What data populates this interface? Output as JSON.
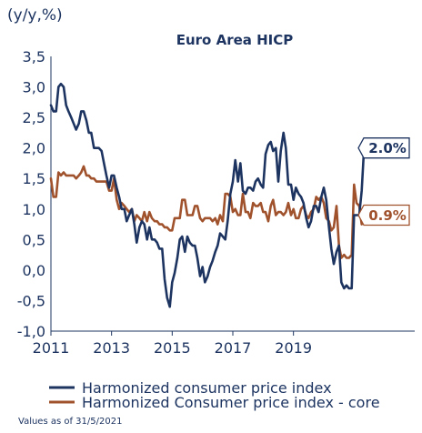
{
  "chart_data": {
    "type": "line",
    "title": "Euro Area HICP",
    "ylabel": "(y/y,%)",
    "xlabel": "",
    "ylim": [
      -1.0,
      3.5
    ],
    "xlim": [
      2011.0,
      2023.0
    ],
    "yticks": [
      "3,5",
      "3,0",
      "2,5",
      "2,0",
      "1,5",
      "1,0",
      "0,5",
      "0,0",
      "-0,5",
      "-1,0"
    ],
    "xticks": [
      "2011",
      "2013",
      "2015",
      "2017",
      "2019"
    ],
    "grid": false,
    "legend": "bottom",
    "colors": {
      "headline": "#1d3461",
      "core": "#a0522d"
    },
    "series": [
      {
        "name": "Harmonized consumer price index",
        "color": "#1d3461",
        "x": [
          2011.0,
          2011.08,
          2011.17,
          2011.25,
          2011.33,
          2011.42,
          2011.5,
          2011.58,
          2011.67,
          2011.75,
          2011.83,
          2011.92,
          2012.0,
          2012.08,
          2012.17,
          2012.25,
          2012.33,
          2012.42,
          2012.5,
          2012.58,
          2012.67,
          2012.75,
          2012.83,
          2012.92,
          2013.0,
          2013.08,
          2013.17,
          2013.25,
          2013.33,
          2013.42,
          2013.5,
          2013.58,
          2013.67,
          2013.75,
          2013.83,
          2013.92,
          2014.0,
          2014.08,
          2014.17,
          2014.25,
          2014.33,
          2014.42,
          2014.5,
          2014.58,
          2014.67,
          2014.75,
          2014.83,
          2014.92,
          2015.0,
          2015.08,
          2015.17,
          2015.25,
          2015.33,
          2015.42,
          2015.5,
          2015.58,
          2015.67,
          2015.75,
          2015.83,
          2015.92,
          2016.0,
          2016.08,
          2016.17,
          2016.25,
          2016.33,
          2016.42,
          2016.5,
          2016.58,
          2016.67,
          2016.75,
          2016.83,
          2016.92,
          2017.0,
          2017.08,
          2017.17,
          2017.25,
          2017.33,
          2017.42,
          2017.5,
          2017.58,
          2017.67,
          2017.75,
          2017.83,
          2017.92,
          2018.0,
          2018.08,
          2018.17,
          2018.25,
          2018.33,
          2018.42,
          2018.5,
          2018.58,
          2018.67,
          2018.75,
          2018.83,
          2018.92,
          2019.0,
          2019.08,
          2019.17,
          2019.25,
          2019.33,
          2019.42,
          2019.5,
          2019.58,
          2019.67,
          2019.75,
          2019.83,
          2019.92,
          2020.0,
          2020.08,
          2020.17,
          2020.25,
          2020.33,
          2020.42,
          2020.5,
          2020.58,
          2020.67,
          2020.75,
          2020.83,
          2020.92,
          2021.0,
          2021.08,
          2021.17,
          2021.25,
          2021.33
        ],
        "values": [
          2.7,
          2.6,
          2.6,
          3.0,
          3.05,
          3.0,
          2.7,
          2.6,
          2.5,
          2.4,
          2.3,
          2.4,
          2.6,
          2.6,
          2.45,
          2.25,
          2.25,
          2.0,
          2.0,
          2.0,
          1.95,
          1.75,
          1.55,
          1.35,
          1.55,
          1.55,
          1.35,
          1.2,
          1.0,
          1.0,
          0.8,
          0.9,
          1.0,
          0.75,
          0.45,
          0.7,
          0.8,
          0.75,
          0.5,
          0.7,
          0.5,
          0.5,
          0.45,
          0.35,
          0.35,
          -0.15,
          -0.45,
          -0.6,
          -0.2,
          -0.05,
          0.2,
          0.5,
          0.55,
          0.3,
          0.55,
          0.45,
          0.4,
          0.4,
          0.2,
          -0.1,
          0.05,
          -0.2,
          -0.1,
          0.05,
          0.15,
          0.3,
          0.4,
          0.6,
          0.55,
          0.5,
          0.8,
          1.25,
          1.45,
          1.8,
          1.45,
          1.75,
          1.3,
          1.25,
          1.35,
          1.35,
          1.3,
          1.45,
          1.5,
          1.4,
          1.35,
          1.9,
          2.05,
          2.1,
          1.95,
          2.0,
          1.45,
          1.95,
          2.25,
          2.0,
          1.4,
          1.4,
          1.15,
          1.35,
          1.25,
          1.2,
          1.1,
          0.85,
          0.7,
          0.8,
          1.05,
          1.05,
          0.95,
          1.2,
          1.35,
          1.15,
          0.7,
          0.35,
          0.1,
          0.3,
          0.4,
          -0.2,
          -0.3,
          -0.25,
          -0.3,
          -0.3,
          0.9,
          0.9,
          0.9,
          1.3,
          2.0
        ]
      },
      {
        "name": "Harmonized Consumer price index - core",
        "color": "#a0522d",
        "x": [
          2011.0,
          2011.08,
          2011.17,
          2011.25,
          2011.33,
          2011.42,
          2011.5,
          2011.58,
          2011.67,
          2011.75,
          2011.83,
          2011.92,
          2012.0,
          2012.08,
          2012.17,
          2012.25,
          2012.33,
          2012.42,
          2012.5,
          2012.58,
          2012.67,
          2012.75,
          2012.83,
          2012.92,
          2013.0,
          2013.08,
          2013.17,
          2013.25,
          2013.33,
          2013.42,
          2013.5,
          2013.58,
          2013.67,
          2013.75,
          2013.83,
          2013.92,
          2014.0,
          2014.08,
          2014.17,
          2014.25,
          2014.33,
          2014.42,
          2014.5,
          2014.58,
          2014.67,
          2014.75,
          2014.83,
          2014.92,
          2015.0,
          2015.08,
          2015.17,
          2015.25,
          2015.33,
          2015.42,
          2015.5,
          2015.58,
          2015.67,
          2015.75,
          2015.83,
          2015.92,
          2016.0,
          2016.08,
          2016.17,
          2016.25,
          2016.33,
          2016.42,
          2016.5,
          2016.58,
          2016.67,
          2016.75,
          2016.83,
          2016.92,
          2017.0,
          2017.08,
          2017.17,
          2017.25,
          2017.33,
          2017.42,
          2017.5,
          2017.58,
          2017.67,
          2017.75,
          2017.83,
          2017.92,
          2018.0,
          2018.08,
          2018.17,
          2018.25,
          2018.33,
          2018.42,
          2018.5,
          2018.58,
          2018.67,
          2018.75,
          2018.83,
          2018.92,
          2019.0,
          2019.08,
          2019.17,
          2019.25,
          2019.33,
          2019.42,
          2019.5,
          2019.58,
          2019.67,
          2019.75,
          2019.83,
          2019.92,
          2020.0,
          2020.08,
          2020.17,
          2020.25,
          2020.33,
          2020.42,
          2020.5,
          2020.58,
          2020.67,
          2020.75,
          2020.83,
          2020.92,
          2021.0,
          2021.08,
          2021.17,
          2021.25,
          2021.33
        ],
        "values": [
          1.5,
          1.2,
          1.2,
          1.6,
          1.55,
          1.6,
          1.55,
          1.55,
          1.55,
          1.55,
          1.5,
          1.55,
          1.6,
          1.7,
          1.55,
          1.55,
          1.5,
          1.5,
          1.45,
          1.45,
          1.45,
          1.45,
          1.45,
          1.3,
          1.3,
          1.5,
          1.15,
          1.0,
          1.1,
          1.05,
          1.0,
          0.95,
          1.0,
          0.8,
          0.9,
          0.85,
          0.8,
          0.95,
          0.8,
          0.95,
          0.85,
          0.8,
          0.8,
          0.75,
          0.75,
          0.7,
          0.7,
          0.65,
          0.65,
          0.85,
          0.85,
          0.85,
          1.15,
          1.15,
          0.9,
          0.9,
          0.9,
          1.05,
          1.05,
          0.85,
          0.8,
          0.85,
          0.85,
          0.85,
          0.8,
          0.85,
          0.75,
          0.9,
          0.8,
          1.25,
          1.25,
          1.2,
          0.95,
          1.0,
          0.9,
          0.9,
          1.25,
          0.95,
          0.95,
          0.85,
          1.1,
          1.05,
          1.05,
          1.1,
          0.95,
          0.95,
          0.8,
          1.05,
          1.15,
          0.9,
          0.95,
          0.95,
          0.9,
          0.95,
          1.1,
          0.9,
          1.0,
          0.85,
          0.85,
          1.0,
          1.05,
          0.9,
          0.85,
          0.95,
          1.0,
          1.2,
          1.15,
          1.2,
          1.1,
          0.85,
          0.8,
          0.65,
          0.7,
          1.05,
          0.4,
          0.2,
          0.25,
          0.2,
          0.2,
          0.25,
          1.4,
          1.1,
          1.05,
          0.75,
          0.9
        ]
      }
    ],
    "annotations": [
      {
        "series": 0,
        "label": "2.0%"
      },
      {
        "series": 1,
        "label": "0.9%"
      }
    ],
    "footnote": "Values as of 31/5/2021"
  }
}
